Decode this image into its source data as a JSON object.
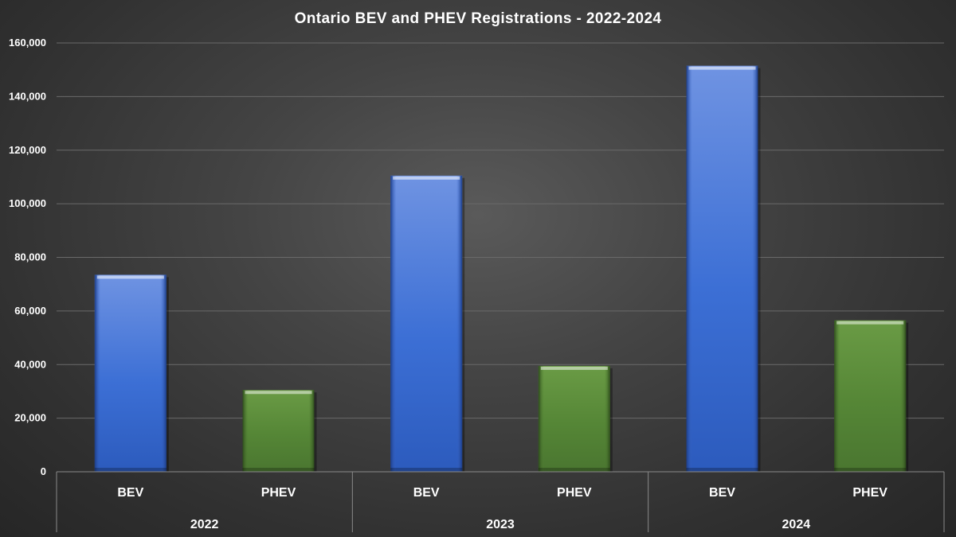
{
  "chart_data": {
    "type": "bar",
    "title": "Ontario BEV and PHEV Registrations - 2022-2024",
    "xlabel": "",
    "ylabel": "",
    "ylim": [
      0,
      160000
    ],
    "ytick_values": [
      0,
      20000,
      40000,
      60000,
      80000,
      100000,
      120000,
      140000,
      160000
    ],
    "ytick_labels": [
      "0",
      "20,000",
      "40,000",
      "60,000",
      "80,000",
      "100,000",
      "120,000",
      "140,000",
      "160,000"
    ],
    "grid": true,
    "groups": [
      "2022",
      "2023",
      "2024"
    ],
    "subcategories": [
      "BEV",
      "PHEV"
    ],
    "bars": [
      {
        "group": "2022",
        "category": "BEV",
        "value": 73500
      },
      {
        "group": "2022",
        "category": "PHEV",
        "value": 30500
      },
      {
        "group": "2023",
        "category": "BEV",
        "value": 110500
      },
      {
        "group": "2023",
        "category": "PHEV",
        "value": 39500
      },
      {
        "group": "2024",
        "category": "BEV",
        "value": 151500
      },
      {
        "group": "2024",
        "category": "PHEV",
        "value": 56500
      }
    ],
    "colors": {
      "BEV": "#3d6fd6",
      "PHEV": "#548235"
    }
  }
}
